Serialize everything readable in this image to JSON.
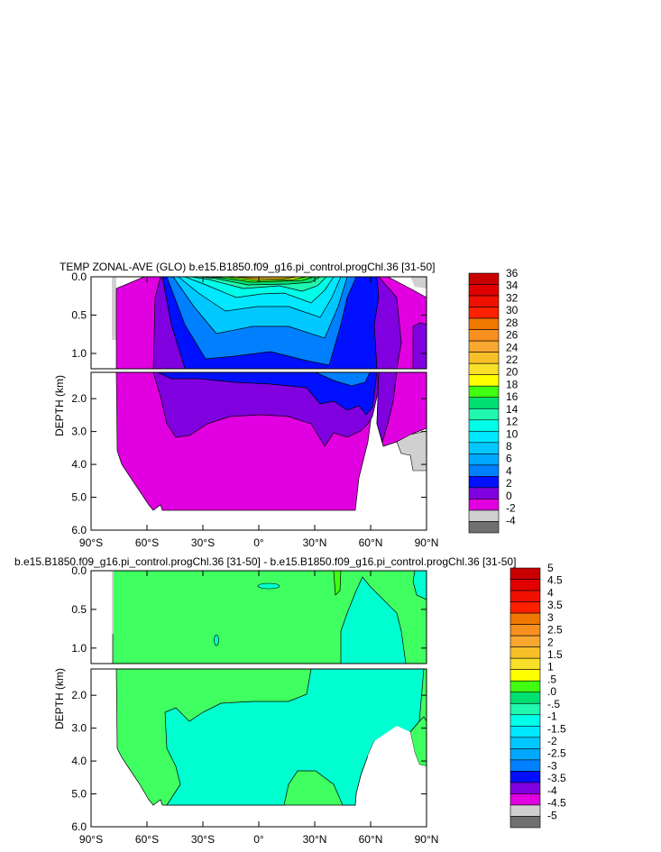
{
  "chart_data": [
    {
      "type": "heatmap",
      "title": "TEMP ZONAL-AVE (GLO) b.e15.B1850.f09_g16.pi_control.progChl.36 [31-50]",
      "ylabel": "DEPTH (km)",
      "x_ticks": [
        "90°S",
        "60°S",
        "30°S",
        "0°",
        "30°N",
        "60°N",
        "90°N"
      ],
      "y_ticks_upper": [
        "0.0",
        "0.5",
        "1.0"
      ],
      "y_ticks_lower": [
        "2.0",
        "3.0",
        "4.0",
        "5.0",
        "6.0"
      ],
      "xlim": [
        -90,
        90
      ],
      "ylim_upper": [
        0,
        1.2
      ],
      "ylim_lower": [
        1.2,
        6.0
      ],
      "colorbar": {
        "labels": [
          "36",
          "34",
          "32",
          "30",
          "28",
          "26",
          "24",
          "22",
          "20",
          "18",
          "16",
          "14",
          "12",
          "10",
          "8",
          "6",
          "4",
          "2",
          "0",
          "-2",
          "-4"
        ],
        "colors": [
          "#c80000",
          "#e00000",
          "#f01000",
          "#ff2000",
          "#f07800",
          "#f89020",
          "#f8a830",
          "#f8c028",
          "#f8e028",
          "#ffff00",
          "#40ff10",
          "#00e070",
          "#20f8b0",
          "#00ffe8",
          "#00e8ff",
          "#00c8ff",
          "#00a8ff",
          "#0080ff",
          "#0010ff",
          "#8000e0",
          "#e000e0",
          "#d0d0d0",
          "#707070"
        ]
      }
    },
    {
      "type": "heatmap",
      "title": "b.e15.B1850.f09_g16.pi_control.progChl.36 [31-50] - b.e15.B1850.f09_g16.pi_control.progChl.36 [31-50]",
      "ylabel": "DEPTH (km)",
      "x_ticks": [
        "90°S",
        "60°S",
        "30°S",
        "0°",
        "30°N",
        "60°N",
        "90°N"
      ],
      "y_ticks_upper": [
        "0.0",
        "0.5",
        "1.0"
      ],
      "y_ticks_lower": [
        "2.0",
        "3.0",
        "4.0",
        "5.0",
        "6.0"
      ],
      "xlim": [
        -90,
        90
      ],
      "ylim_upper": [
        0,
        1.2
      ],
      "ylim_lower": [
        1.2,
        6.0
      ],
      "colorbar": {
        "labels": [
          "5",
          "4.5",
          "4",
          "3.5",
          "3",
          "2.5",
          "2",
          "1.5",
          "1",
          ".5",
          ".0",
          "-.5",
          "-1",
          "-1.5",
          "-2",
          "-2.5",
          "-3",
          "-3.5",
          "-4",
          "-4.5",
          "-5"
        ],
        "colors": [
          "#c80000",
          "#e00000",
          "#f01000",
          "#ff2000",
          "#f07800",
          "#f89020",
          "#f8a830",
          "#f8c028",
          "#f8e028",
          "#ffff00",
          "#40ff10",
          "#00e070",
          "#20f8b0",
          "#00ffe8",
          "#00e8ff",
          "#00c8ff",
          "#00a8ff",
          "#0080ff",
          "#0010ff",
          "#8000e0",
          "#e000e0",
          "#d0d0d0",
          "#707070"
        ]
      }
    }
  ],
  "colors": {
    "magenta": "#e000e0",
    "purple": "#8000e0",
    "blue": "#0010ff",
    "light_blue": "#0080ff",
    "cyan": "#00c8ff",
    "aqua": "#00ffe8",
    "green": "#40ff10",
    "diff_green": "#40ff60",
    "diff_aqua": "#00ffd0",
    "land": "#d0d0d0"
  }
}
